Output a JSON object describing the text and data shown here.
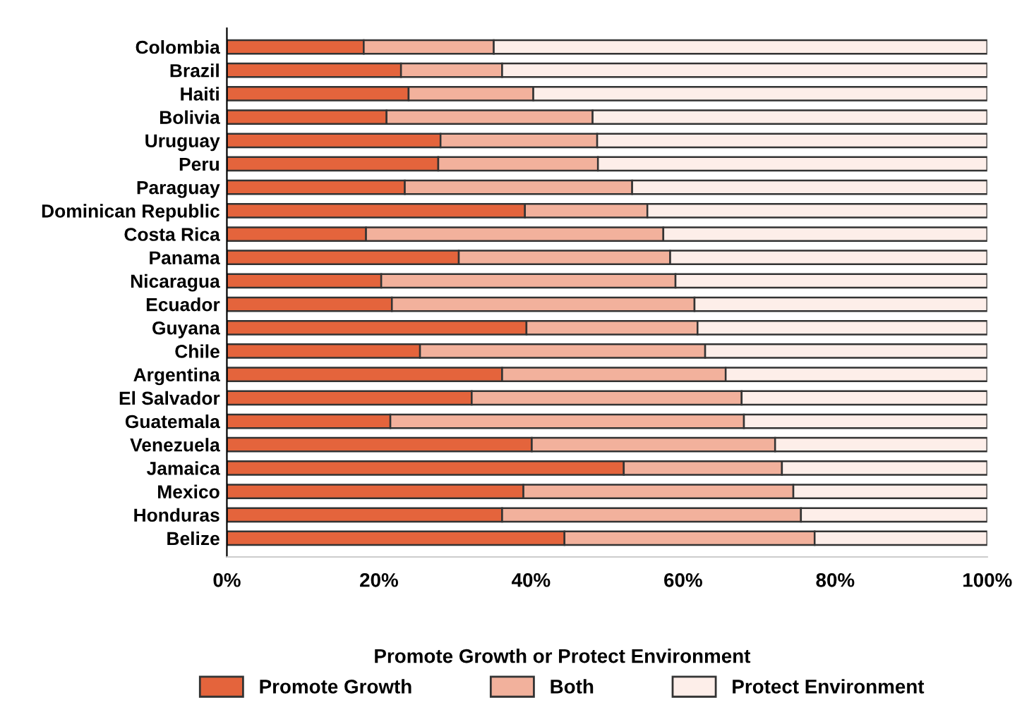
{
  "chart_data": {
    "type": "bar",
    "orientation": "horizontal",
    "stacked": true,
    "categories": [
      "Colombia",
      "Brazil",
      "Haiti",
      "Bolivia",
      "Uruguay",
      "Peru",
      "Paraguay",
      "Dominican Republic",
      "Costa Rica",
      "Panama",
      "Nicaragua",
      "Ecuador",
      "Guyana",
      "Chile",
      "Argentina",
      "El Salvador",
      "Guatemala",
      "Venezuela",
      "Jamaica",
      "Mexico",
      "Honduras",
      "Belize"
    ],
    "series": [
      {
        "name": "Promote Growth",
        "color": "#e4643c",
        "values": [
          18.0,
          22.9,
          23.9,
          21.0,
          28.1,
          27.8,
          23.4,
          39.2,
          18.3,
          30.5,
          20.3,
          21.7,
          39.4,
          25.4,
          36.2,
          32.2,
          21.5,
          40.1,
          52.2,
          39.0,
          36.2,
          44.4
        ]
      },
      {
        "name": "Both",
        "color": "#f2b19c",
        "values": [
          17.1,
          13.3,
          16.4,
          27.1,
          20.6,
          21.0,
          29.9,
          16.1,
          39.1,
          27.8,
          38.7,
          39.8,
          22.5,
          37.5,
          29.4,
          35.5,
          46.5,
          32.0,
          20.8,
          35.5,
          39.3,
          32.9
        ]
      },
      {
        "name": "Protect Environment",
        "color": "#fdeee9",
        "values": [
          64.9,
          63.8,
          59.7,
          51.9,
          51.3,
          51.2,
          46.7,
          44.7,
          42.6,
          41.7,
          41.0,
          38.5,
          38.1,
          37.1,
          34.4,
          32.3,
          32.0,
          27.9,
          27.0,
          25.5,
          24.5,
          22.7
        ]
      }
    ],
    "xlim": [
      0,
      100
    ],
    "xticks": [
      {
        "value": 0,
        "label": "0%"
      },
      {
        "value": 20,
        "label": "20%"
      },
      {
        "value": 40,
        "label": "40%"
      },
      {
        "value": 60,
        "label": "60%"
      },
      {
        "value": 80,
        "label": "80%"
      },
      {
        "value": 100,
        "label": "100%"
      }
    ],
    "legend": "bottom",
    "legend_title": "Promote Growth or Protect Environment",
    "grid": false
  }
}
